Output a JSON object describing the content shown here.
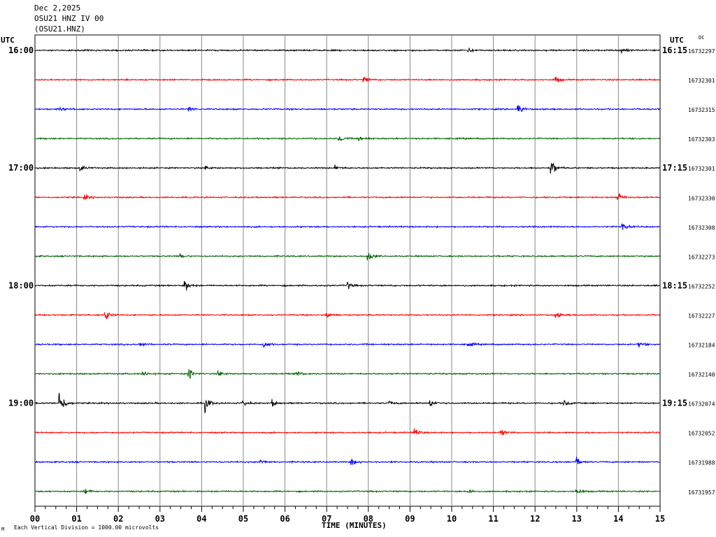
{
  "header": {
    "date": "Dec 2,2025",
    "station": "OSU21 HNZ IV 00",
    "code": "(OSU21.HNZ)"
  },
  "utc_left": "UTC",
  "utc_right": "UTC",
  "dc_label": "DC",
  "footnote": "Each Vertical Division = 1000.00 microvolts",
  "footnote_mark": "M",
  "colors": {
    "trace": [
      "#000000",
      "#ff0000",
      "#0000ff",
      "#006400"
    ],
    "grid": "#888888"
  },
  "chart_data": {
    "type": "line",
    "title": "",
    "xlabel": "TIME (MINUTES)",
    "xlim": [
      0,
      15
    ],
    "x_ticks": [
      "00",
      "01",
      "02",
      "03",
      "04",
      "05",
      "06",
      "07",
      "08",
      "09",
      "10",
      "11",
      "12",
      "13",
      "14",
      "15"
    ],
    "left_time_labels": [
      "16:00",
      "",
      "",
      "",
      "17:00",
      "",
      "",
      "",
      "18:00",
      "",
      "",
      "",
      "19:00",
      "",
      "",
      ""
    ],
    "right_time_labels": [
      "16:15",
      "",
      "",
      "",
      "17:15",
      "",
      "",
      "",
      "18:15",
      "",
      "",
      "",
      "19:15",
      "",
      "",
      ""
    ],
    "dc_offsets": [
      "16732297",
      "16732301",
      "16732315",
      "16732303",
      "16732301",
      "16732330",
      "16732308",
      "16732273",
      "16732252",
      "16732227",
      "16732184",
      "16732140",
      "16732074",
      "16732052",
      "16731988",
      "16731957"
    ],
    "events": [
      [
        [
          10.4,
          3
        ],
        [
          14.1,
          4
        ]
      ],
      [
        [
          7.9,
          4
        ],
        [
          12.5,
          5
        ]
      ],
      [
        [
          0.6,
          3
        ],
        [
          3.7,
          3
        ],
        [
          11.6,
          8
        ]
      ],
      [
        [
          7.3,
          5
        ],
        [
          7.8,
          5
        ]
      ],
      [
        [
          1.1,
          4
        ],
        [
          4.1,
          3
        ],
        [
          7.2,
          4
        ],
        [
          12.4,
          11
        ]
      ],
      [
        [
          1.2,
          4
        ],
        [
          14.0,
          7
        ]
      ],
      [
        [
          14.1,
          5
        ]
      ],
      [
        [
          3.5,
          3
        ],
        [
          8.0,
          8
        ]
      ],
      [
        [
          3.6,
          8
        ],
        [
          7.5,
          5
        ]
      ],
      [
        [
          1.7,
          7
        ],
        [
          7.0,
          4
        ],
        [
          12.5,
          4
        ]
      ],
      [
        [
          2.5,
          5
        ],
        [
          5.5,
          5
        ],
        [
          10.4,
          4
        ],
        [
          14.5,
          4
        ]
      ],
      [
        [
          2.6,
          4
        ],
        [
          3.7,
          7
        ],
        [
          4.4,
          5
        ],
        [
          6.3,
          4
        ]
      ],
      [
        [
          0.6,
          19
        ],
        [
          4.1,
          10
        ],
        [
          5.0,
          5
        ],
        [
          5.7,
          4
        ],
        [
          8.5,
          3
        ],
        [
          9.5,
          6
        ],
        [
          12.7,
          5
        ]
      ],
      [
        [
          9.1,
          6
        ],
        [
          11.2,
          5
        ]
      ],
      [
        [
          5.4,
          4
        ],
        [
          7.6,
          5
        ],
        [
          13.0,
          6
        ]
      ],
      [
        [
          1.2,
          4
        ],
        [
          10.4,
          4
        ],
        [
          13.0,
          5
        ]
      ]
    ]
  }
}
